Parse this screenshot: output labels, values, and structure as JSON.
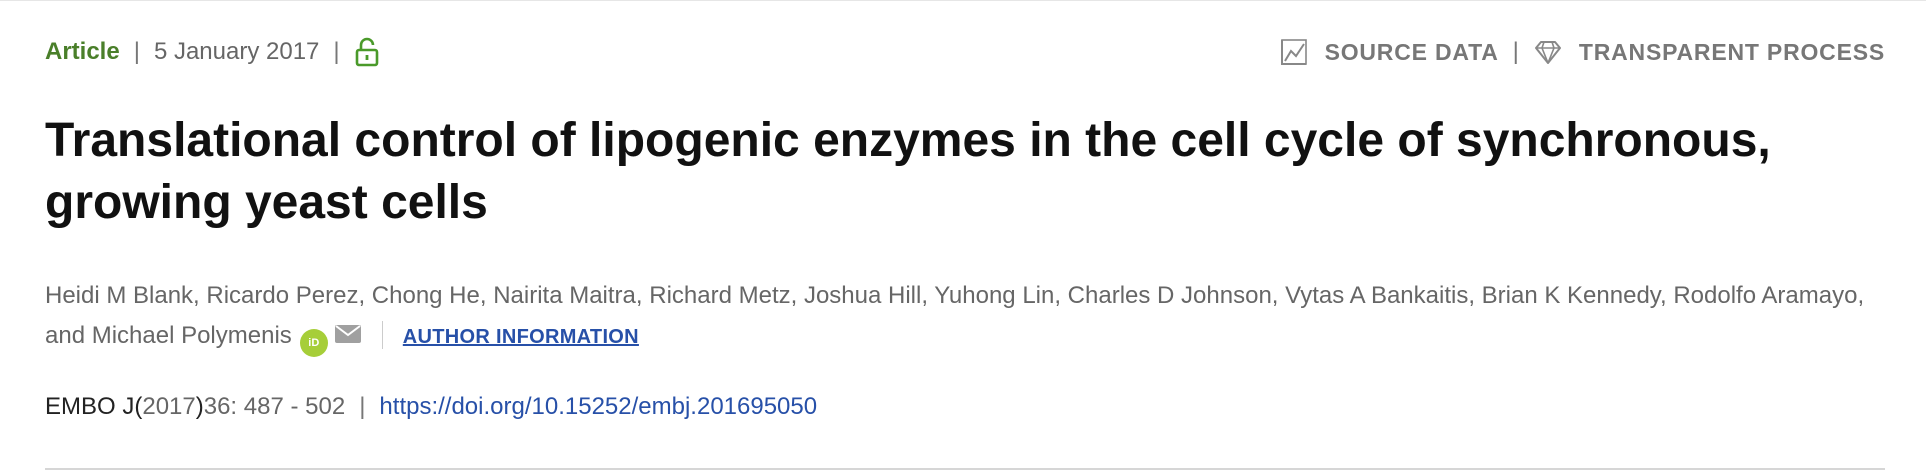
{
  "header": {
    "article_type": "Article",
    "separator": "|",
    "date": "5 January 2017",
    "lock_icon": "open-lock-icon",
    "source_data": "SOURCE DATA",
    "transparent_process": "TRANSPARENT PROCESS"
  },
  "title": "Translational control of lipogenic enzymes in the cell cycle of synchronous, growing yeast cells",
  "authors": {
    "list": "Heidi M Blank, Ricardo Perez, Chong He, Nairita Maitra, Richard Metz, Joshua Hill, Yuhong Lin, Charles D Johnson, Vytas A Bankaitis, Brian K Kennedy, Rodolfo Aramayo, and Michael Polymenis",
    "orcid_label": "iD",
    "author_info_link": "AUTHOR INFORMATION"
  },
  "citation": {
    "journal": "EMBO J",
    "year_prefix": "(",
    "year": "2017",
    "year_suffix": ")",
    "volume_pages": "36: 487 - 502",
    "separator": "|",
    "doi": "https://doi.org/10.15252/embj.201695050"
  },
  "colors": {
    "article_type": "#4a7f2a",
    "link": "#2750a8",
    "orcid": "#a6ce39",
    "muted": "#666666"
  }
}
